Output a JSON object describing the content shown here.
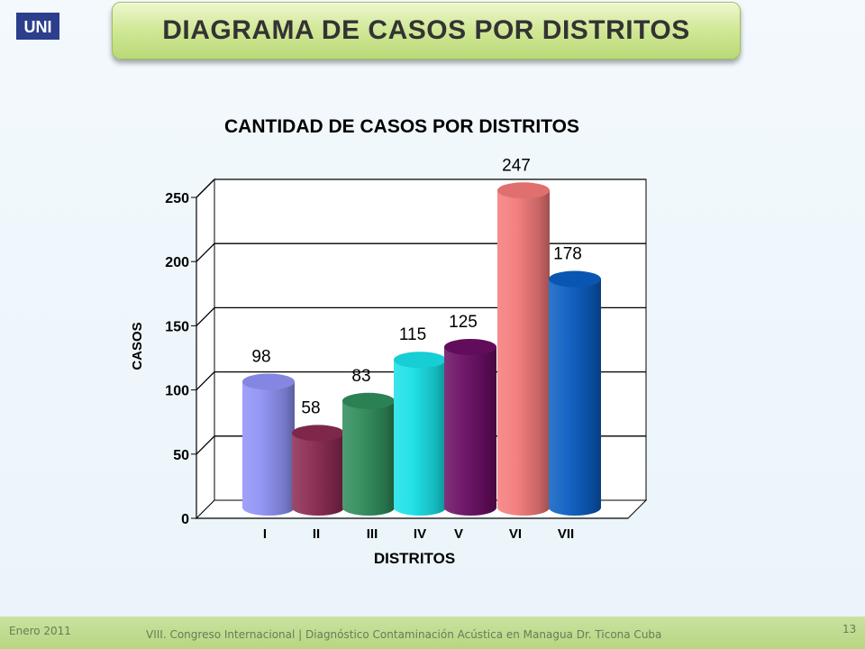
{
  "header": {
    "title": "DIAGRAMA DE CASOS POR DISTRITOS",
    "logo_text": "UNI"
  },
  "footer": {
    "date": "Enero 2011",
    "caption": "VIII. Congreso Internacional | Diagnóstico Contaminación Acústica en Managua    Dr. Ticona Cuba",
    "page_number": "13"
  },
  "chart_data": {
    "type": "bar",
    "title": "CANTIDAD DE CASOS POR DISTRITOS",
    "xlabel": "DISTRITOS",
    "ylabel": "CASOS",
    "categories": [
      "I",
      "II",
      "III",
      "IV",
      "V",
      "VI",
      "VII"
    ],
    "values": [
      98,
      58,
      83,
      115,
      125,
      247,
      178
    ],
    "ylim": [
      0,
      250
    ],
    "yticks": [
      0,
      50,
      100,
      150,
      200,
      250
    ],
    "grid": true,
    "colors": [
      "#8f92f5",
      "#8a2a52",
      "#2f8c5a",
      "#18e0e6",
      "#6a0e63",
      "#f47a7a",
      "#0a5ec2"
    ]
  }
}
